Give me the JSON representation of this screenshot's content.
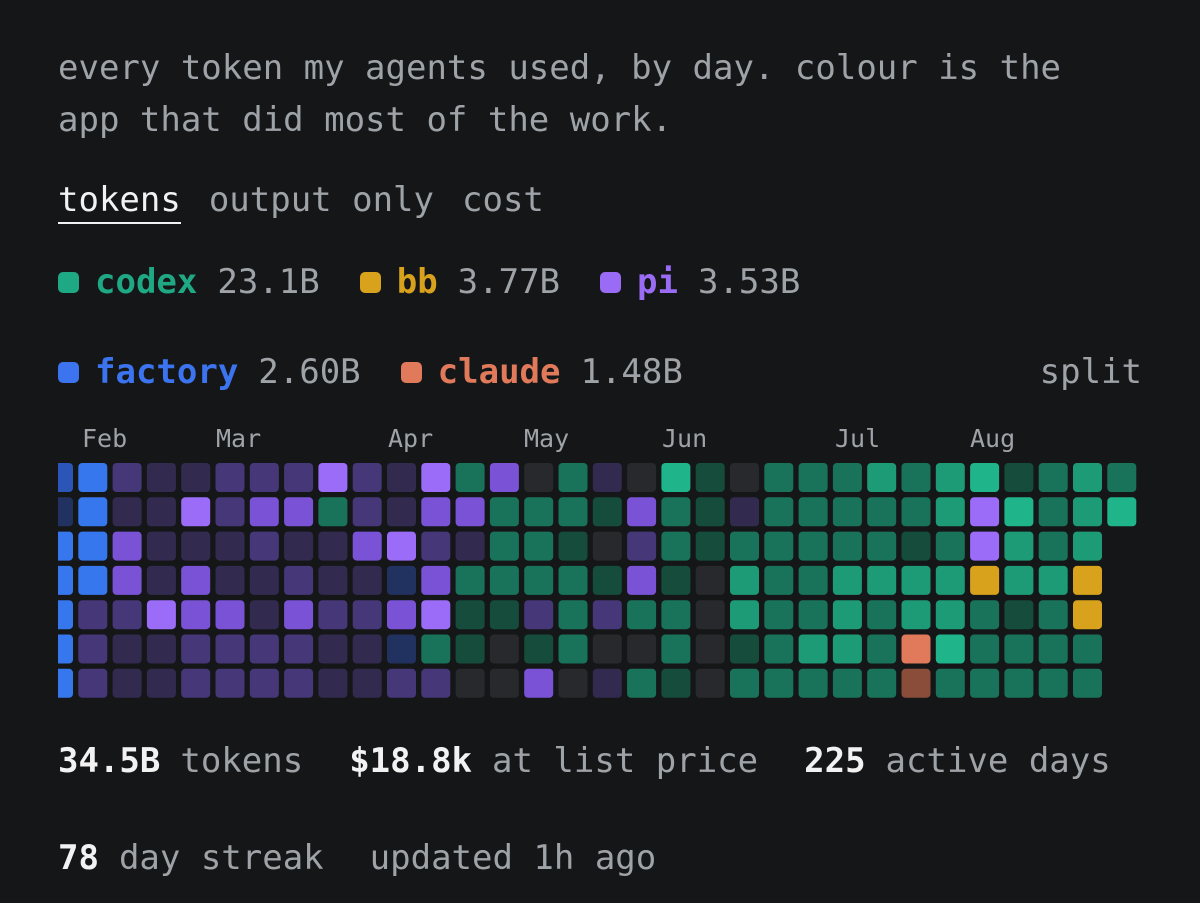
{
  "intro": {
    "lines": [
      "every token my agents used, by day. colour is the",
      "app that did most of the work."
    ]
  },
  "tabs": [
    {
      "label": "tokens",
      "active": true
    },
    {
      "label": "output only"
    },
    {
      "label": "cost"
    }
  ],
  "legend": {
    "rows": [
      [
        {
          "name": "codex",
          "value": "23.1B",
          "color": "#1fa884"
        },
        {
          "name": "bb",
          "value": "3.77B",
          "color": "#d9a21c"
        },
        {
          "name": "pi",
          "value": "3.53B",
          "color": "#9a6cf5"
        }
      ],
      [
        {
          "name": "factory",
          "value": "2.60B",
          "color": "#3b74ee"
        },
        {
          "name": "claude",
          "value": "1.48B",
          "color": "#e07a5a"
        }
      ]
    ],
    "toggle": "split"
  },
  "months": [
    "Feb",
    "Mar",
    "Apr",
    "May",
    "Jun",
    "Jul",
    "Aug"
  ],
  "stats": {
    "rows": [
      [
        {
          "value": "34.5B",
          "label": "tokens"
        },
        {
          "value": "$18.8k",
          "label": "at list price"
        },
        {
          "value": "225",
          "label": "active days"
        }
      ],
      [
        {
          "value": "78",
          "label": "day streak"
        },
        {
          "label": "updated 1h ago"
        }
      ]
    ]
  }
}
